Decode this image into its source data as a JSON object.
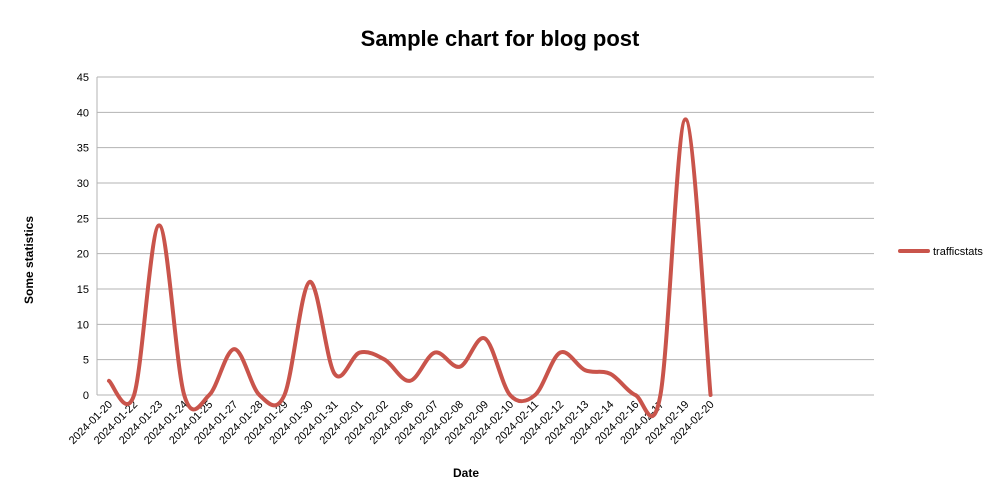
{
  "chart_data": {
    "type": "line",
    "title": "Sample chart for blog post",
    "xlabel": "Date",
    "ylabel": "Some statistics",
    "ylim": [
      0,
      45
    ],
    "yticks": [
      0,
      5,
      10,
      15,
      20,
      25,
      30,
      35,
      40,
      45
    ],
    "grid": true,
    "legend_position": "right",
    "categories": [
      "2024-01-20",
      "2024-01-22",
      "2024-01-23",
      "2024-01-24",
      "2024-01-25",
      "2024-01-27",
      "2024-01-28",
      "2024-01-29",
      "2024-01-30",
      "2024-01-31",
      "2024-02-01",
      "2024-02-02",
      "2024-02-06",
      "2024-02-07",
      "2024-02-08",
      "2024-02-09",
      "2024-02-10",
      "2024-02-11",
      "2024-02-12",
      "2024-02-13",
      "2024-02-14",
      "2024-02-16",
      "2024-02-17",
      "2024-02-19",
      "2024-02-20"
    ],
    "series": [
      {
        "name": "trafficstats",
        "color": "#c9544b",
        "values": [
          2,
          0,
          24,
          0,
          0,
          6.5,
          0,
          0,
          16,
          3,
          6,
          5,
          2,
          6,
          4,
          8,
          0,
          0,
          6,
          3.5,
          3,
          0,
          0,
          39,
          0
        ]
      }
    ]
  }
}
